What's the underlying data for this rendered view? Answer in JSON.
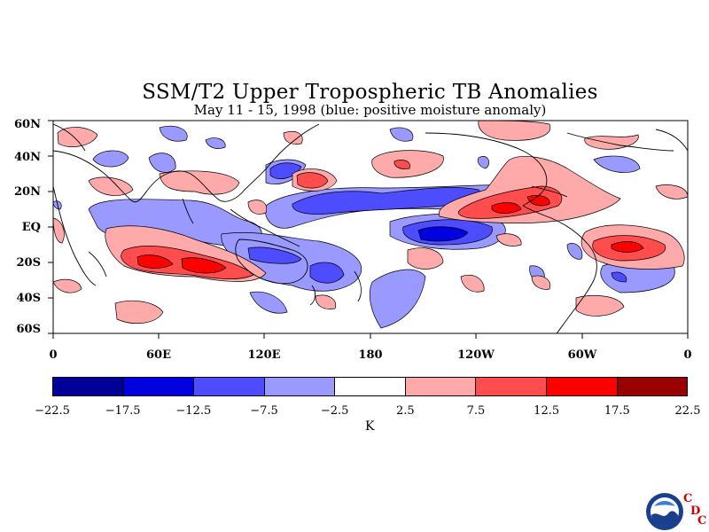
{
  "title": "SSM/T2 Upper Tropospheric TB Anomalies",
  "subtitle": "May 11 - 15, 1998 (blue: positive moisture anomaly)",
  "lat_labels": [
    "60N",
    "40N",
    "20N",
    "EQ",
    "20S",
    "40S",
    "60S"
  ],
  "lon_labels": [
    "0",
    "60E",
    "120E",
    "180",
    "120W",
    "60W",
    "0"
  ],
  "colorbar": {
    "unit": "K",
    "ticks": [
      "-22.5",
      "-17.5",
      "-12.5",
      "-7.5",
      "-2.5",
      "2.5",
      "7.5",
      "12.5",
      "17.5",
      "22.5"
    ],
    "colors": [
      "#000099",
      "#0000e0",
      "#4d4dff",
      "#9999ff",
      "#ffffff",
      "#ffaaaa",
      "#ff4d4d",
      "#ff0000",
      "#990000"
    ]
  },
  "logo": {
    "letters": [
      "C",
      "D",
      "C"
    ]
  },
  "colors": {
    "neg_light": "#9999ff",
    "neg_mid": "#4d4dff",
    "neg_dark": "#0000e0",
    "pos_light": "#ffaaaa",
    "pos_mid": "#ff4d4d",
    "pos_dark": "#ff0000"
  }
}
